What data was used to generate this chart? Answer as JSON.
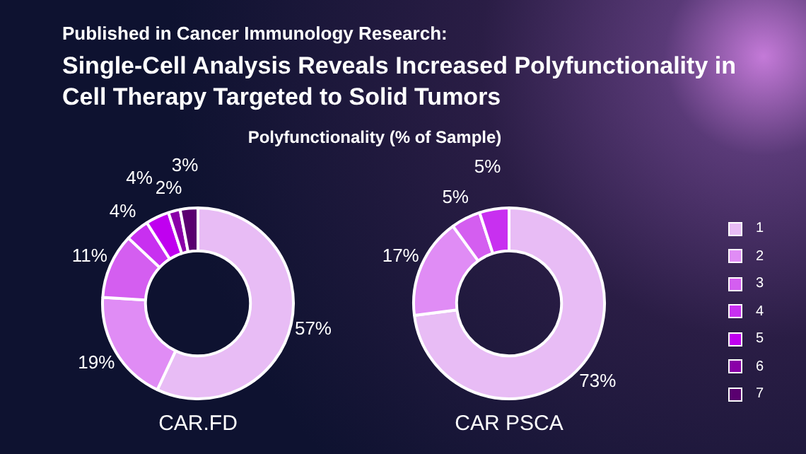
{
  "chart_data": [
    {
      "type": "donut",
      "annotations": [
        "Published in Cancer Immunology Research:"
      ],
      "title": "Single-Cell Analysis Reveals Increased Polyfunctionality in Cell Therapy Targeted to Solid Tumors",
      "subtitle": "Polyfunctionality (% of Sample)",
      "xlabel": "CAR.FD",
      "categories": [
        null,
        null,
        null,
        null,
        null,
        null,
        null
      ],
      "values": [
        57,
        19,
        11,
        4,
        4,
        2,
        3
      ],
      "colors": [
        "#e8bcf5",
        "#e08cf5",
        "#d45ef0",
        "#c830f0",
        "#c000f0",
        "#8a00a8",
        "#5a0070"
      ],
      "value_labels": [
        "57%",
        "19%",
        "11%",
        "4%",
        "4%",
        "2%",
        "3%"
      ],
      "legend": false
    },
    {
      "type": "donut",
      "xlabel": "CAR PSCA",
      "categories": [
        "1",
        "2",
        "3",
        "4",
        "5",
        "6",
        "7"
      ],
      "values": [
        73,
        17,
        5,
        5,
        0,
        0,
        0
      ],
      "colors": [
        "#e8bcf5",
        "#e08cf5",
        "#d45ef0",
        "#c830f0",
        "#c000f0",
        "#8a00a8",
        "#5a0070"
      ],
      "value_labels": [
        "73%",
        "17%",
        "5%",
        "5%",
        null,
        null,
        null
      ],
      "legend": "right"
    }
  ]
}
